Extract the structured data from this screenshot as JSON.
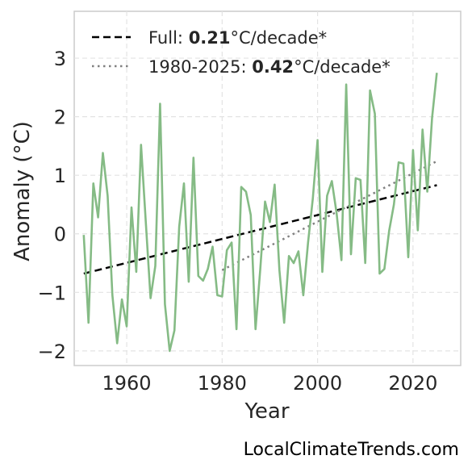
{
  "chart_data": {
    "type": "line",
    "title": "",
    "xlabel": "Year",
    "ylabel": "Anomaly (°C)",
    "xlim": [
      1949,
      2030
    ],
    "ylim": [
      -2.25,
      3.8
    ],
    "xticks": [
      1960,
      1980,
      2000,
      2020
    ],
    "yticks": [
      -2,
      -1,
      0,
      1,
      2,
      3
    ],
    "ytick_labels": [
      "−2",
      "−1",
      "0",
      "1",
      "2",
      "3"
    ],
    "grid": true,
    "legend_position": "top-left",
    "series": [
      {
        "x": [
          1951,
          1952,
          1953,
          1954,
          1955,
          1956,
          1957,
          1958,
          1959,
          1960,
          1961,
          1962,
          1963,
          1964,
          1965,
          1966,
          1967,
          1968,
          1969,
          1970,
          1971,
          1972,
          1973,
          1974,
          1975,
          1976,
          1977,
          1978,
          1979,
          1980,
          1981,
          1982,
          1983,
          1984,
          1985,
          1986,
          1987,
          1988,
          1989,
          1990,
          1991,
          1992,
          1993,
          1994,
          1995,
          1996,
          1997,
          1998,
          1999,
          2000,
          2001,
          2002,
          2003,
          2004,
          2005,
          2006,
          2007,
          2008,
          2009,
          2010,
          2011,
          2012,
          2013,
          2014,
          2015,
          2016,
          2017,
          2018,
          2019,
          2020,
          2021,
          2022,
          2023,
          2024,
          2025
        ],
        "values": [
          -0.02,
          -1.52,
          0.86,
          0.28,
          1.38,
          0.65,
          -1.05,
          -1.87,
          -1.12,
          -1.58,
          0.45,
          -0.65,
          1.52,
          0.2,
          -1.1,
          -0.55,
          2.22,
          -1.2,
          -2.0,
          -1.65,
          0.12,
          0.86,
          -0.82,
          1.3,
          -0.72,
          -0.8,
          -0.6,
          -0.22,
          -1.05,
          -1.07,
          -0.28,
          -0.15,
          -1.63,
          0.8,
          0.72,
          0.32,
          -1.63,
          -0.6,
          0.55,
          0.2,
          0.84,
          -0.62,
          -1.52,
          -0.38,
          -0.5,
          -0.3,
          -1.05,
          -0.15,
          0.6,
          1.6,
          -0.65,
          0.65,
          0.9,
          0.35,
          -0.45,
          2.55,
          -0.35,
          0.95,
          0.92,
          -0.5,
          2.45,
          2.05,
          -0.68,
          -0.6,
          0.05,
          0.5,
          1.22,
          1.2,
          -0.4,
          1.43,
          0.06,
          1.78,
          0.72,
          1.98,
          2.75
        ],
        "color": "#85bb85"
      }
    ],
    "trends": [
      {
        "name": "Full",
        "value": "0.21",
        "unit": "°C/decade*",
        "start": [
          1951,
          -0.68
        ],
        "end": [
          2025,
          0.83
        ],
        "style": "dashed",
        "color": "#000000"
      },
      {
        "name": "1980-2025",
        "value": "0.42",
        "unit": "°C/decade*",
        "start": [
          1980,
          -0.62
        ],
        "end": [
          2025,
          1.24
        ],
        "style": "dotted",
        "color": "#808080"
      }
    ]
  },
  "footer": "LocalClimateTrends.com"
}
